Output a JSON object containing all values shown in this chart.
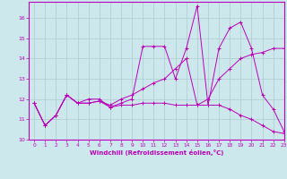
{
  "title": "",
  "xlabel": "Windchill (Refroidissement éolien,°C)",
  "ylabel": "",
  "background_color": "#cde8ec",
  "line_color": "#bb00bb",
  "grid_color": "#aacccc",
  "xlim": [
    -0.5,
    23
  ],
  "ylim": [
    10,
    16.8
  ],
  "yticks": [
    10,
    11,
    12,
    13,
    14,
    15,
    16
  ],
  "xticks": [
    0,
    1,
    2,
    3,
    4,
    5,
    6,
    7,
    8,
    9,
    10,
    11,
    12,
    13,
    14,
    15,
    16,
    17,
    18,
    19,
    20,
    21,
    22,
    23
  ],
  "series": [
    [
      11.8,
      10.7,
      11.2,
      12.2,
      11.8,
      11.8,
      11.9,
      11.6,
      11.7,
      11.7,
      11.8,
      11.8,
      11.8,
      11.7,
      11.7,
      11.7,
      11.7,
      11.7,
      11.5,
      11.2,
      11.0,
      10.7,
      10.4,
      10.3
    ],
    [
      11.8,
      10.7,
      11.2,
      12.2,
      11.8,
      12.0,
      12.0,
      11.6,
      11.8,
      12.0,
      14.6,
      14.6,
      14.6,
      13.0,
      14.5,
      16.6,
      11.7,
      14.5,
      15.5,
      15.8,
      14.5,
      12.2,
      11.5,
      10.4
    ],
    [
      11.8,
      10.7,
      11.2,
      12.2,
      11.8,
      11.8,
      11.9,
      11.7,
      12.0,
      12.2,
      12.5,
      12.8,
      13.0,
      13.5,
      14.0,
      11.7,
      12.0,
      13.0,
      13.5,
      14.0,
      14.2,
      14.3,
      14.5,
      14.5
    ]
  ]
}
